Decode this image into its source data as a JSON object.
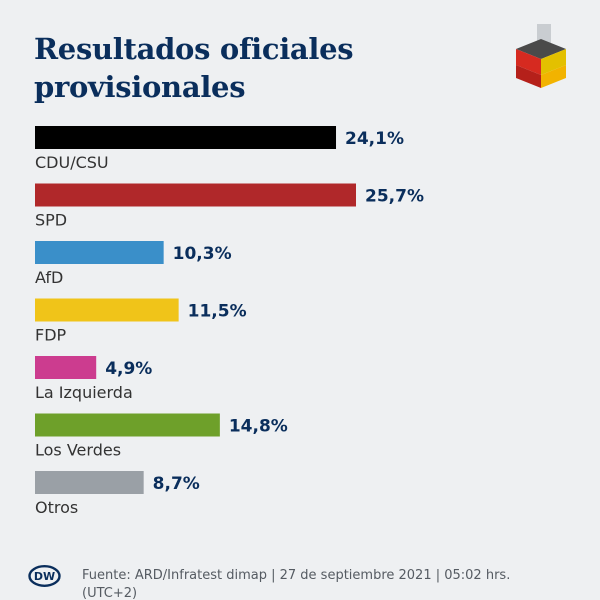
{
  "header": {
    "title": "Resultados oficiales provisionales"
  },
  "icons": {
    "ballot": "ballot-box-icon",
    "brand": "dw-logo"
  },
  "brand": {
    "logo_text": "DW"
  },
  "footer": {
    "source": "Fuente: ARD/Infratest dimap | 27 de septiembre 2021 | 05:02 hrs. (UTC+2)"
  },
  "chart_data": {
    "type": "bar",
    "orientation": "horizontal",
    "title": "Resultados oficiales provisionales",
    "unit": "%",
    "categories": [
      "CDU/CSU",
      "SPD",
      "AfD",
      "FDP",
      "La Izquierda",
      "Los Verdes",
      "Otros"
    ],
    "values": [
      24.1,
      25.7,
      10.3,
      11.5,
      4.9,
      14.8,
      8.7
    ],
    "value_labels": [
      "24,1%",
      "25,7%",
      "10,3%",
      "11,5%",
      "4,9%",
      "14,8%",
      "8,7%"
    ],
    "colors": [
      "#000000",
      "#b0282a",
      "#3a8fc9",
      "#f0c419",
      "#cc3c8f",
      "#6ea02a",
      "#9aa0a6"
    ],
    "xlim": [
      0,
      25.7
    ]
  }
}
